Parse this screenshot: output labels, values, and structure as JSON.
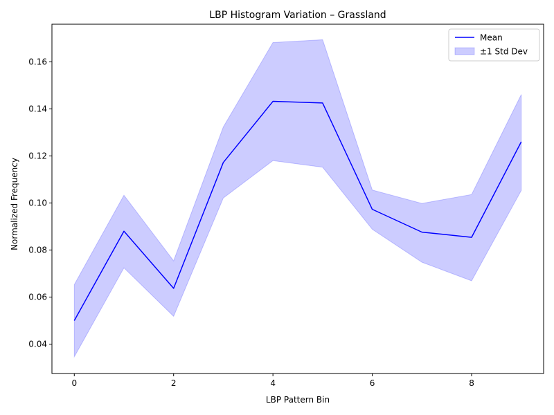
{
  "chart_data": {
    "type": "line",
    "title": "LBP Histogram Variation – Grassland",
    "xlabel": "LBP Pattern Bin",
    "ylabel": "Normalized Frequency",
    "x": [
      0,
      1,
      2,
      3,
      4,
      5,
      6,
      7,
      8,
      9
    ],
    "xlim": [
      -0.45,
      9.45
    ],
    "ylim": [
      0.0275,
      0.176
    ],
    "xticks": [
      0,
      2,
      4,
      6,
      8
    ],
    "yticks": [
      0.04,
      0.06,
      0.08,
      0.1,
      0.12,
      0.14,
      0.16
    ],
    "ytick_labels": [
      "0.04",
      "0.06",
      "0.08",
      "0.10",
      "0.12",
      "0.14",
      "0.16"
    ],
    "grid": false,
    "legend_position": "upper-right",
    "series": [
      {
        "name": "Mean",
        "kind": "line",
        "color": "#0000ff",
        "values": [
          0.05,
          0.088,
          0.0637,
          0.1172,
          0.1432,
          0.1425,
          0.0973,
          0.0876,
          0.0854,
          0.126
        ]
      },
      {
        "name": "±1 Std Dev",
        "kind": "band",
        "color": "#0000ff",
        "upper": [
          0.0653,
          0.1033,
          0.0754,
          0.1323,
          0.1682,
          0.1694,
          0.1055,
          0.0998,
          0.1036,
          0.1461
        ],
        "lower": [
          0.0346,
          0.0724,
          0.0518,
          0.1021,
          0.118,
          0.1152,
          0.0888,
          0.0748,
          0.0669,
          0.1053
        ]
      }
    ]
  }
}
